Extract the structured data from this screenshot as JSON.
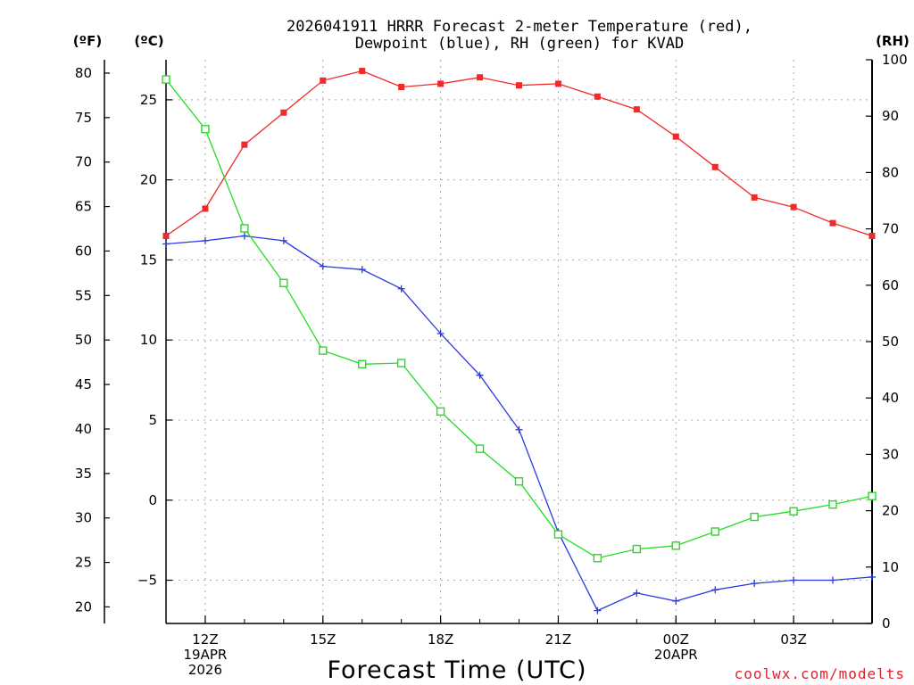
{
  "chart_data": {
    "type": "line",
    "title": [
      "2026041911 HRRR Forecast 2-meter Temperature (red),",
      "Dewpoint (blue), RH (green) for KVAD"
    ],
    "xlabel": "Forecast Time (UTC)",
    "credit": "coolwx.com/modelts",
    "units": {
      "fahrenheit": "(ºF)",
      "celsius": "(ºC)",
      "rh": "(RH)"
    },
    "x_hours": [
      11,
      12,
      13,
      14,
      15,
      16,
      17,
      18,
      19,
      20,
      21,
      22,
      23,
      24,
      25,
      26,
      27,
      28,
      29
    ],
    "xlim": [
      11,
      29
    ],
    "x_ticks": [
      {
        "hour": 12,
        "lines": [
          "12Z",
          "19APR",
          "2026"
        ]
      },
      {
        "hour": 15,
        "lines": [
          "15Z"
        ]
      },
      {
        "hour": 18,
        "lines": [
          "18Z"
        ]
      },
      {
        "hour": 21,
        "lines": [
          "21Z"
        ]
      },
      {
        "hour": 24,
        "lines": [
          "00Z",
          "20APR"
        ]
      },
      {
        "hour": 27,
        "lines": [
          "03Z"
        ]
      }
    ],
    "celsius_axis": {
      "ylim": [
        -7.7,
        27.5
      ],
      "ticks": [
        25,
        20,
        15,
        10,
        5,
        0,
        -5
      ],
      "tick_labels": [
        "25",
        "20",
        "15",
        "10",
        "5",
        "0",
        "−5"
      ]
    },
    "fahrenheit_axis": {
      "ticks": [
        80,
        75,
        70,
        65,
        60,
        55,
        50,
        45,
        40,
        35,
        30,
        25,
        20
      ]
    },
    "rh_axis": {
      "ylim": [
        0,
        100
      ],
      "ticks": [
        0,
        10,
        20,
        30,
        40,
        50,
        60,
        70,
        80,
        90,
        100
      ]
    },
    "series": [
      {
        "name": "Temperature",
        "unit": "C",
        "color": "#ee2a2a",
        "marker": "filled-square",
        "values": [
          16.5,
          18.2,
          22.2,
          24.2,
          26.2,
          26.8,
          25.8,
          26.0,
          26.4,
          25.9,
          26.0,
          25.2,
          24.4,
          22.7,
          20.8,
          18.9,
          18.3,
          17.3,
          16.5
        ]
      },
      {
        "name": "Dewpoint",
        "unit": "C",
        "color": "#2a3ae0",
        "marker": "plus",
        "values": [
          16.0,
          16.2,
          16.5,
          16.2,
          14.6,
          14.4,
          13.2,
          10.4,
          7.8,
          4.4,
          -2.0,
          -6.9,
          -5.8,
          -6.3,
          -5.6,
          -5.2,
          -5.0,
          -5.0,
          -4.8
        ]
      },
      {
        "name": "RH",
        "unit": "%",
        "color": "#22dd22",
        "marker": "open-square",
        "values": [
          96.5,
          87.7,
          70.1,
          60.4,
          48.4,
          46.0,
          46.2,
          37.6,
          31.0,
          25.2,
          15.8,
          11.6,
          13.2,
          13.8,
          16.3,
          18.9,
          19.9,
          21.1,
          22.6
        ]
      }
    ]
  }
}
